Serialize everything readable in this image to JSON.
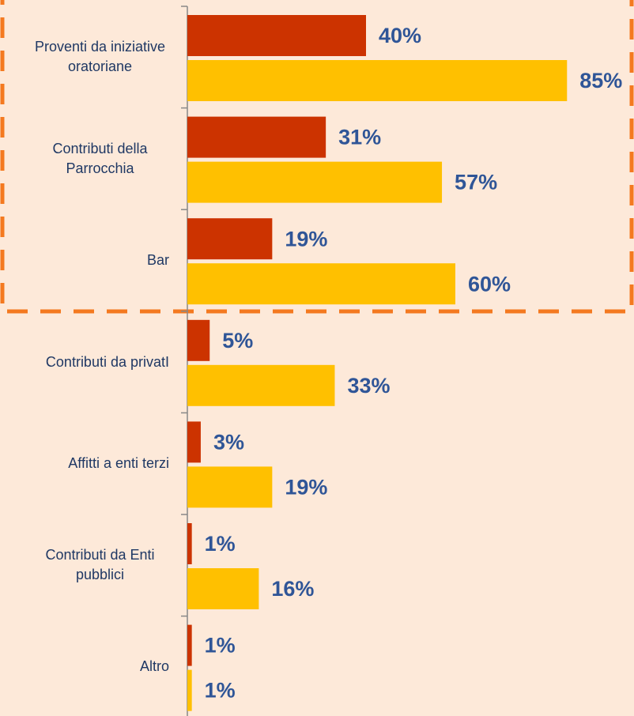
{
  "chart_data": {
    "type": "barh",
    "categories": [
      "Proventi da iniziative oratoriane",
      "Contributi della Parrocchia",
      "Bar",
      "Contributi da privatI",
      "Affitti a enti terzi",
      "Contributi da Enti pubblici",
      "Altro"
    ],
    "series": [
      {
        "color": "#cc3300",
        "values": [
          40,
          31,
          19,
          5,
          3,
          1,
          1
        ],
        "value_labels": [
          "40%",
          "31%",
          "19%",
          "5%",
          "3%",
          "1%",
          "1%"
        ]
      },
      {
        "color": "#ffc000",
        "values": [
          85,
          57,
          60,
          33,
          19,
          16,
          1
        ],
        "value_labels": [
          "85%",
          "57%",
          "60%",
          "33%",
          "19%",
          "16%",
          "1%"
        ]
      }
    ],
    "xlim": [
      0,
      100
    ]
  }
}
